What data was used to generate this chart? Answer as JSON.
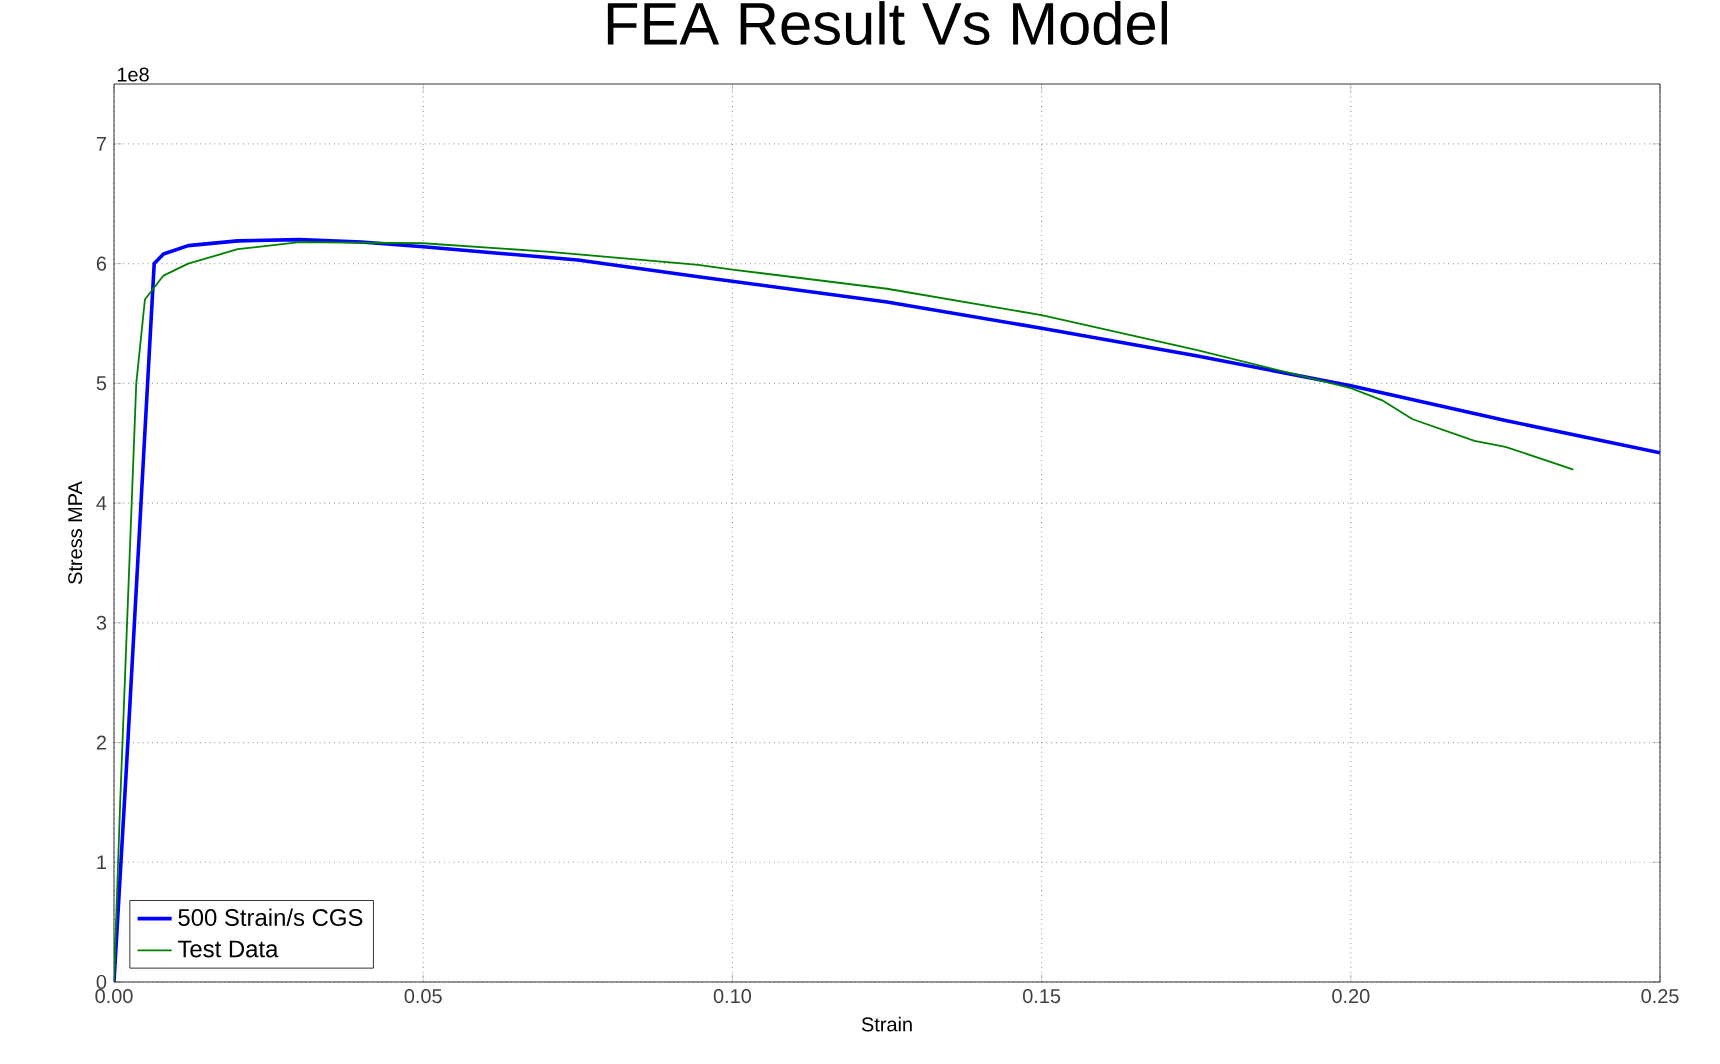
{
  "chart_data": {
    "type": "line",
    "title": "FEA Result Vs Model",
    "xlabel": "Strain",
    "ylabel": "Stress MPA",
    "annotations": [
      "1e8"
    ],
    "xlim": [
      0,
      0.25
    ],
    "ylim": [
      0,
      7.5
    ],
    "xticks": [
      {
        "value": 0,
        "label": "0.00"
      },
      {
        "value": 0.05,
        "label": "0.05"
      },
      {
        "value": 0.1,
        "label": "0.10"
      },
      {
        "value": 0.15,
        "label": "0.15"
      },
      {
        "value": 0.2,
        "label": "0.20"
      },
      {
        "value": 0.25,
        "label": "0.25"
      }
    ],
    "yticks": [
      0,
      1,
      2,
      3,
      4,
      5,
      6,
      7
    ],
    "grid": true,
    "legend": "bottom left",
    "series": [
      {
        "name": "500 Strain/s CGS",
        "color": "#0000ff",
        "x": [
          0,
          0.002,
          0.0065,
          0.008,
          0.012,
          0.02,
          0.03,
          0.04,
          0.05,
          0.075,
          0.0945,
          0.125,
          0.15,
          0.175,
          0.2,
          0.225,
          0.25
        ],
        "values": [
          0,
          1.78,
          6.0,
          6.08,
          6.15,
          6.19,
          6.2,
          6.18,
          6.14,
          6.03,
          5.89,
          5.68,
          5.46,
          5.23,
          4.98,
          4.69,
          4.42
        ]
      },
      {
        "name": "Test Data",
        "color": "#008000",
        "x": [
          0,
          0.001,
          0.0036,
          0.005,
          0.008,
          0.012,
          0.02,
          0.03,
          0.05,
          0.07,
          0.0945,
          0.1,
          0.125,
          0.15,
          0.175,
          0.2,
          0.205,
          0.21,
          0.22,
          0.225,
          0.236
        ],
        "values": [
          0,
          1.5,
          5.0,
          5.7,
          5.9,
          6.0,
          6.12,
          6.18,
          6.17,
          6.1,
          5.99,
          5.95,
          5.79,
          5.57,
          5.28,
          4.96,
          4.86,
          4.7,
          4.52,
          4.47,
          4.28
        ]
      }
    ]
  }
}
